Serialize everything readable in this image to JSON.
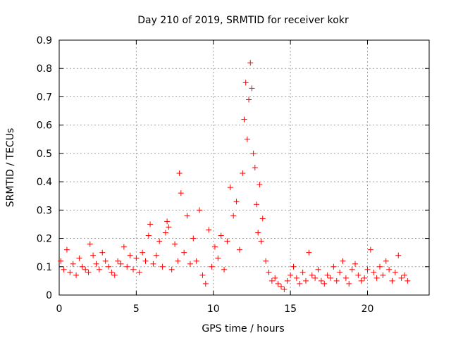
{
  "chart_data": {
    "type": "scatter",
    "title": "Day 210 of 2019, SRMTID for receiver kokr",
    "xlabel": "GPS time / hours",
    "ylabel": "SRMTID / TECUs",
    "xlim": [
      0,
      24
    ],
    "ylim": [
      0,
      0.9
    ],
    "x_ticks": [
      0,
      5,
      10,
      15,
      20
    ],
    "x_tick_labels": [
      "0",
      "5",
      "10",
      "15",
      "20"
    ],
    "y_ticks": [
      0,
      0.1,
      0.2,
      0.3,
      0.4,
      0.5,
      0.6,
      0.7,
      0.8,
      0.9
    ],
    "y_tick_labels": [
      "0",
      "0.1",
      "0.2",
      "0.3",
      "0.4",
      "0.5",
      "0.6",
      "0.7",
      "0.8",
      "0.9"
    ],
    "grid": true,
    "marker": "+",
    "series": [
      {
        "name": "SRMTID",
        "color": "#ff0000",
        "x": [
          0.1,
          0.3,
          0.5,
          0.7,
          0.9,
          1.1,
          1.3,
          1.5,
          1.7,
          1.9,
          2.0,
          2.2,
          2.4,
          2.6,
          2.8,
          3.0,
          3.2,
          3.4,
          3.6,
          3.8,
          4.0,
          4.2,
          4.4,
          4.6,
          4.8,
          5.0,
          5.2,
          5.4,
          5.6,
          5.8,
          5.9,
          6.1,
          6.3,
          6.5,
          6.7,
          6.9,
          7.0,
          7.1,
          7.3,
          7.5,
          7.7,
          7.8,
          7.9,
          8.1,
          8.3,
          8.5,
          8.7,
          8.9,
          9.1,
          9.3,
          9.5,
          9.7,
          9.9,
          10.1,
          10.3,
          10.5,
          10.7,
          10.9,
          11.1,
          11.3,
          11.5,
          11.7,
          11.9,
          12.0,
          12.1,
          12.2,
          12.3,
          12.4,
          12.5,
          12.6,
          12.7,
          12.8,
          12.9,
          13.0,
          13.1,
          13.2,
          13.4,
          13.6,
          13.8,
          14.0,
          14.2,
          14.4,
          14.6,
          14.8,
          15.0,
          15.2,
          15.4,
          15.6,
          15.8,
          16.0,
          16.2,
          16.4,
          16.6,
          16.8,
          17.0,
          17.2,
          17.4,
          17.6,
          17.8,
          18.0,
          18.2,
          18.4,
          18.6,
          18.8,
          19.0,
          19.2,
          19.4,
          19.6,
          19.8,
          20.0,
          20.2,
          20.4,
          20.6,
          20.8,
          21.0,
          21.2,
          21.4,
          21.6,
          21.8,
          22.0,
          22.2,
          22.4,
          22.6
        ],
        "y": [
          0.12,
          0.09,
          0.16,
          0.08,
          0.11,
          0.07,
          0.13,
          0.1,
          0.09,
          0.08,
          0.18,
          0.14,
          0.11,
          0.09,
          0.15,
          0.12,
          0.1,
          0.08,
          0.07,
          0.12,
          0.11,
          0.17,
          0.1,
          0.14,
          0.09,
          0.13,
          0.08,
          0.15,
          0.12,
          0.21,
          0.25,
          0.11,
          0.14,
          0.19,
          0.1,
          0.22,
          0.26,
          0.24,
          0.09,
          0.18,
          0.12,
          0.43,
          0.36,
          0.15,
          0.28,
          0.11,
          0.2,
          0.12,
          0.3,
          0.07,
          0.04,
          0.23,
          0.1,
          0.17,
          0.13,
          0.21,
          0.09,
          0.19,
          0.38,
          0.28,
          0.33,
          0.16,
          0.43,
          0.62,
          0.75,
          0.55,
          0.69,
          0.82,
          0.73,
          0.5,
          0.45,
          0.32,
          0.22,
          0.39,
          0.19,
          0.27,
          0.12,
          0.08,
          0.05,
          0.06,
          0.04,
          0.03,
          0.02,
          0.05,
          0.07,
          0.1,
          0.06,
          0.04,
          0.08,
          0.05,
          0.15,
          0.07,
          0.06,
          0.09,
          0.05,
          0.04,
          0.07,
          0.06,
          0.1,
          0.05,
          0.08,
          0.12,
          0.06,
          0.04,
          0.09,
          0.11,
          0.07,
          0.05,
          0.06,
          0.09,
          0.16,
          0.08,
          0.06,
          0.1,
          0.07,
          0.12,
          0.09,
          0.05,
          0.08,
          0.14,
          0.06,
          0.07,
          0.05
        ]
      }
    ]
  }
}
